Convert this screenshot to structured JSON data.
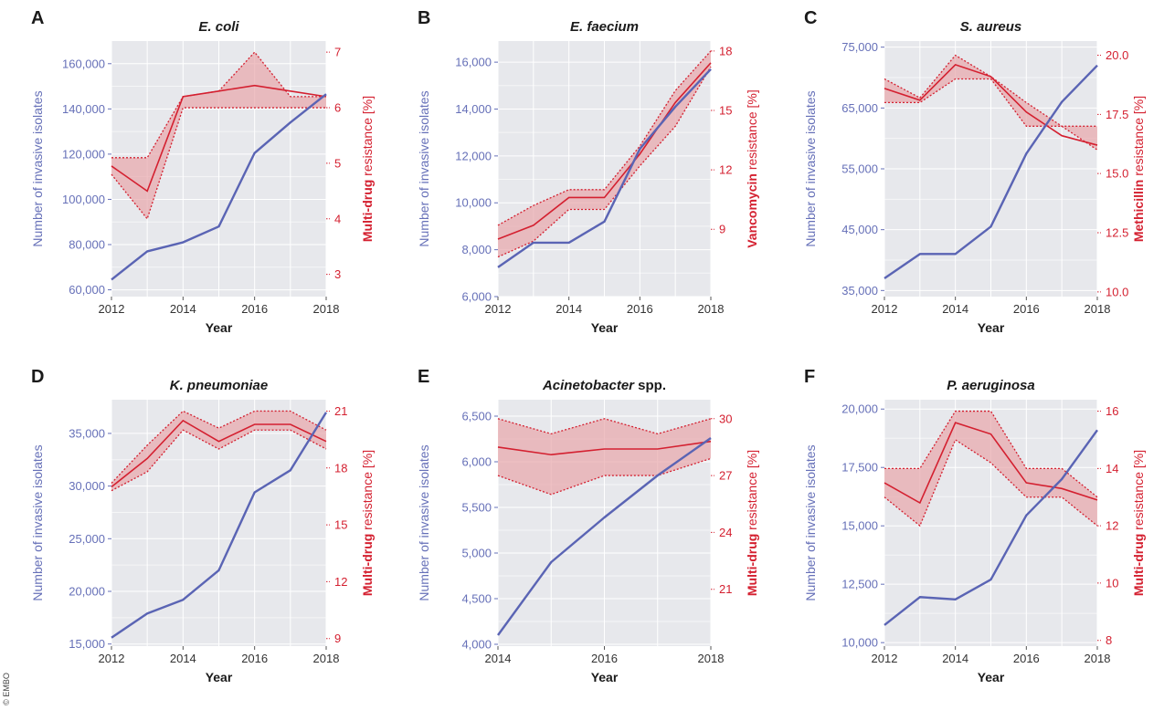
{
  "credit": "© EMBO",
  "colors": {
    "count_line": "#5a64b4",
    "count_text": "#6670b8",
    "resistance_line": "#d42030",
    "resistance_band": "#e8a7ab",
    "panel_bg": "#e7e8ec",
    "grid": "#ffffff"
  },
  "chart_data": [
    {
      "panel": "A",
      "title": "E. coli",
      "title_suffix": "",
      "type": "line",
      "xlabel": "Year",
      "xlim": [
        2012,
        2018
      ],
      "xticks": [
        2012,
        2014,
        2016,
        2018
      ],
      "tick_labels_x": [
        "2012",
        "2014",
        "2016",
        "2018"
      ],
      "ylabel_left": "Number of invasive isolates",
      "ylim_left": [
        57000,
        170000
      ],
      "yticks_left": [
        60000,
        80000,
        100000,
        120000,
        140000,
        160000
      ],
      "tick_labels_left": [
        "60,000",
        "80,000",
        "100,000",
        "120,000",
        "140,000",
        "160,000"
      ],
      "ylabel_right_bold": "Multi-drug",
      "ylabel_right_rest": " resistance [%]",
      "ylim_right": [
        2.6,
        7.2
      ],
      "yticks_right": [
        3,
        4,
        5,
        6,
        7
      ],
      "tick_labels_right": [
        "3",
        "4",
        "5",
        "6",
        "7"
      ],
      "series": [
        {
          "axis": "left",
          "x": [
            2012,
            2013,
            2014,
            2015,
            2016,
            2017,
            2018
          ],
          "values": [
            64500,
            77000,
            81000,
            88000,
            120500,
            134000,
            146500
          ]
        },
        {
          "axis": "right",
          "x": [
            2012,
            2013,
            2014,
            2015,
            2016,
            2017,
            2018
          ],
          "values": [
            4.95,
            4.5,
            6.2,
            6.3,
            6.4,
            6.3,
            6.2
          ],
          "lower": [
            4.8,
            4.0,
            6.0,
            6.0,
            6.0,
            6.0,
            6.0
          ],
          "upper": [
            5.1,
            5.1,
            6.2,
            6.3,
            7.0,
            6.2,
            6.2
          ]
        }
      ]
    },
    {
      "panel": "B",
      "title": "E. faecium",
      "title_suffix": "",
      "type": "line",
      "xlabel": "Year",
      "xlim": [
        2012,
        2018
      ],
      "xticks": [
        2012,
        2014,
        2016,
        2018
      ],
      "tick_labels_x": [
        "2012",
        "2014",
        "2016",
        "2018"
      ],
      "ylabel_left": "Number of invasive isolates",
      "ylim_left": [
        6000,
        16900
      ],
      "yticks_left": [
        6000,
        8000,
        10000,
        12000,
        14000,
        16000
      ],
      "tick_labels_left": [
        "6,000",
        "8,000",
        "10,000",
        "12,000",
        "14,000",
        "16,000"
      ],
      "ylabel_right_bold": "Vancomycin",
      "ylabel_right_rest": " resistance [%]",
      "ylim_right": [
        5.6,
        18.5
      ],
      "yticks_right": [
        9,
        12,
        15,
        18
      ],
      "tick_labels_right": [
        "9",
        "12",
        "15",
        "18"
      ],
      "series": [
        {
          "axis": "left",
          "x": [
            2012,
            2013,
            2014,
            2015,
            2016,
            2017,
            2018
          ],
          "values": [
            7250,
            8300,
            8300,
            9200,
            12300,
            14100,
            15700
          ]
        },
        {
          "axis": "right",
          "x": [
            2012,
            2013,
            2014,
            2015,
            2016,
            2017,
            2018
          ],
          "values": [
            8.5,
            9.2,
            10.6,
            10.6,
            12.8,
            15.4,
            17.4
          ],
          "lower": [
            7.6,
            8.4,
            10.0,
            10.0,
            12.2,
            14.2,
            17.2
          ],
          "upper": [
            9.2,
            10.2,
            11.0,
            11.0,
            13.2,
            16.0,
            18.0
          ]
        }
      ]
    },
    {
      "panel": "C",
      "title": "S. aureus",
      "title_suffix": "",
      "type": "line",
      "xlabel": "Year",
      "xlim": [
        2012,
        2018
      ],
      "xticks": [
        2012,
        2014,
        2016,
        2018
      ],
      "tick_labels_x": [
        "2012",
        "2014",
        "2016",
        "2018"
      ],
      "ylabel_left": "Number of invasive isolates",
      "ylim_left": [
        34000,
        76000
      ],
      "yticks_left": [
        35000,
        45000,
        55000,
        65000,
        75000
      ],
      "tick_labels_left": [
        "35,000",
        "45,000",
        "55,000",
        "65,000",
        "75,000"
      ],
      "ylabel_right_bold": "Methicillin",
      "ylabel_right_rest": " resistance [%]",
      "ylim_right": [
        9.8,
        20.6
      ],
      "yticks_right": [
        10.0,
        12.5,
        15.0,
        17.5,
        20.0
      ],
      "tick_labels_right": [
        "10.0",
        "12.5",
        "15.0",
        "17.5",
        "20.0"
      ],
      "series": [
        {
          "axis": "left",
          "x": [
            2012,
            2013,
            2014,
            2015,
            2016,
            2017,
            2018
          ],
          "values": [
            37000,
            41000,
            41000,
            45500,
            57500,
            66000,
            72000
          ]
        },
        {
          "axis": "right",
          "x": [
            2012,
            2013,
            2014,
            2015,
            2016,
            2017,
            2018
          ],
          "values": [
            18.6,
            18.1,
            19.6,
            19.1,
            17.6,
            16.6,
            16.2
          ],
          "lower": [
            18.0,
            18.0,
            19.0,
            19.0,
            17.0,
            17.0,
            16.0
          ],
          "upper": [
            19.0,
            18.2,
            20.0,
            19.1,
            18.0,
            17.0,
            17.0
          ]
        }
      ]
    },
    {
      "panel": "D",
      "title": "K. pneumoniae",
      "title_suffix": "",
      "type": "line",
      "xlabel": "Year",
      "xlim": [
        2012,
        2018
      ],
      "xticks": [
        2012,
        2014,
        2016,
        2018
      ],
      "tick_labels_x": [
        "2012",
        "2014",
        "2016",
        "2018"
      ],
      "ylabel_left": "Number of invasive isolates",
      "ylim_left": [
        14800,
        38200
      ],
      "yticks_left": [
        15000,
        20000,
        25000,
        30000,
        35000
      ],
      "tick_labels_left": [
        "15,000",
        "20,000",
        "25,000",
        "30,000",
        "35,000"
      ],
      "ylabel_right_bold": "Multi-drug",
      "ylabel_right_rest": " resistance [%]",
      "ylim_right": [
        8.6,
        21.6
      ],
      "yticks_right": [
        9,
        12,
        15,
        18,
        21
      ],
      "tick_labels_right": [
        "9",
        "12",
        "15",
        "18",
        "21"
      ],
      "series": [
        {
          "axis": "left",
          "x": [
            2012,
            2013,
            2014,
            2015,
            2016,
            2017,
            2018
          ],
          "values": [
            15600,
            17900,
            19200,
            22000,
            29400,
            31500,
            37000
          ]
        },
        {
          "axis": "right",
          "x": [
            2012,
            2013,
            2014,
            2015,
            2016,
            2017,
            2018
          ],
          "values": [
            17.0,
            18.5,
            20.5,
            19.4,
            20.3,
            20.3,
            19.4
          ],
          "lower": [
            16.8,
            17.8,
            20.0,
            19.0,
            20.0,
            20.0,
            19.0
          ],
          "upper": [
            17.2,
            19.2,
            21.0,
            20.1,
            21.0,
            21.0,
            20.0
          ]
        }
      ]
    },
    {
      "panel": "E",
      "title": "Acinetobacter",
      "title_suffix": " spp.",
      "type": "line",
      "xlabel": "Year",
      "xlim": [
        2014,
        2018
      ],
      "xticks": [
        2014,
        2016,
        2018
      ],
      "tick_labels_x": [
        "2014",
        "2016",
        "2018"
      ],
      "ylabel_left": "Number of invasive isolates",
      "ylim_left": [
        3980,
        6680
      ],
      "yticks_left": [
        4000,
        4500,
        5000,
        5500,
        6000,
        6500
      ],
      "tick_labels_left": [
        "4,000",
        "4,500",
        "5,000",
        "5,500",
        "6,000",
        "6,500"
      ],
      "ylabel_right_bold": "Multi-drug",
      "ylabel_right_rest": " resistance [%]",
      "ylim_right": [
        18.0,
        31.0
      ],
      "yticks_right": [
        21,
        24,
        27,
        30
      ],
      "tick_labels_right": [
        "21",
        "24",
        "27",
        "30"
      ],
      "series": [
        {
          "axis": "left",
          "x": [
            2014,
            2015,
            2016,
            2017,
            2018
          ],
          "values": [
            4100,
            4900,
            5390,
            5850,
            6260
          ]
        },
        {
          "axis": "right",
          "x": [
            2014,
            2015,
            2016,
            2017,
            2018
          ],
          "values": [
            28.5,
            28.1,
            28.4,
            28.4,
            28.8
          ],
          "lower": [
            27.0,
            26.0,
            27.0,
            27.0,
            27.9
          ],
          "upper": [
            30.0,
            29.2,
            30.0,
            29.2,
            30.0
          ]
        }
      ]
    },
    {
      "panel": "F",
      "title": "P. aeruginosa",
      "title_suffix": "",
      "type": "line",
      "xlabel": "Year",
      "xlim": [
        2012,
        2018
      ],
      "xticks": [
        2012,
        2014,
        2016,
        2018
      ],
      "tick_labels_x": [
        "2012",
        "2014",
        "2016",
        "2018"
      ],
      "ylabel_left": "Number of invasive isolates",
      "ylim_left": [
        9850,
        20400
      ],
      "yticks_left": [
        10000,
        12500,
        15000,
        17500,
        20000
      ],
      "tick_labels_left": [
        "10,000",
        "12,500",
        "15,000",
        "17,500",
        "20,000"
      ],
      "ylabel_right_bold": "Multi-drug",
      "ylabel_right_rest": " resistance [%]",
      "ylim_right": [
        7.8,
        16.4
      ],
      "yticks_right": [
        8,
        10,
        12,
        14,
        16
      ],
      "tick_labels_right": [
        "8",
        "10",
        "12",
        "14",
        "16"
      ],
      "series": [
        {
          "axis": "left",
          "x": [
            2012,
            2013,
            2014,
            2015,
            2016,
            2017,
            2018
          ],
          "values": [
            10750,
            11950,
            11850,
            12700,
            15450,
            17000,
            19100
          ]
        },
        {
          "axis": "right",
          "x": [
            2012,
            2013,
            2014,
            2015,
            2016,
            2017,
            2018
          ],
          "values": [
            13.5,
            12.8,
            15.6,
            15.2,
            13.5,
            13.3,
            12.9
          ],
          "lower": [
            13.0,
            12.0,
            15.0,
            14.2,
            13.0,
            13.0,
            12.0
          ],
          "upper": [
            14.0,
            14.0,
            16.0,
            16.0,
            14.0,
            14.0,
            13.0
          ]
        }
      ]
    }
  ]
}
